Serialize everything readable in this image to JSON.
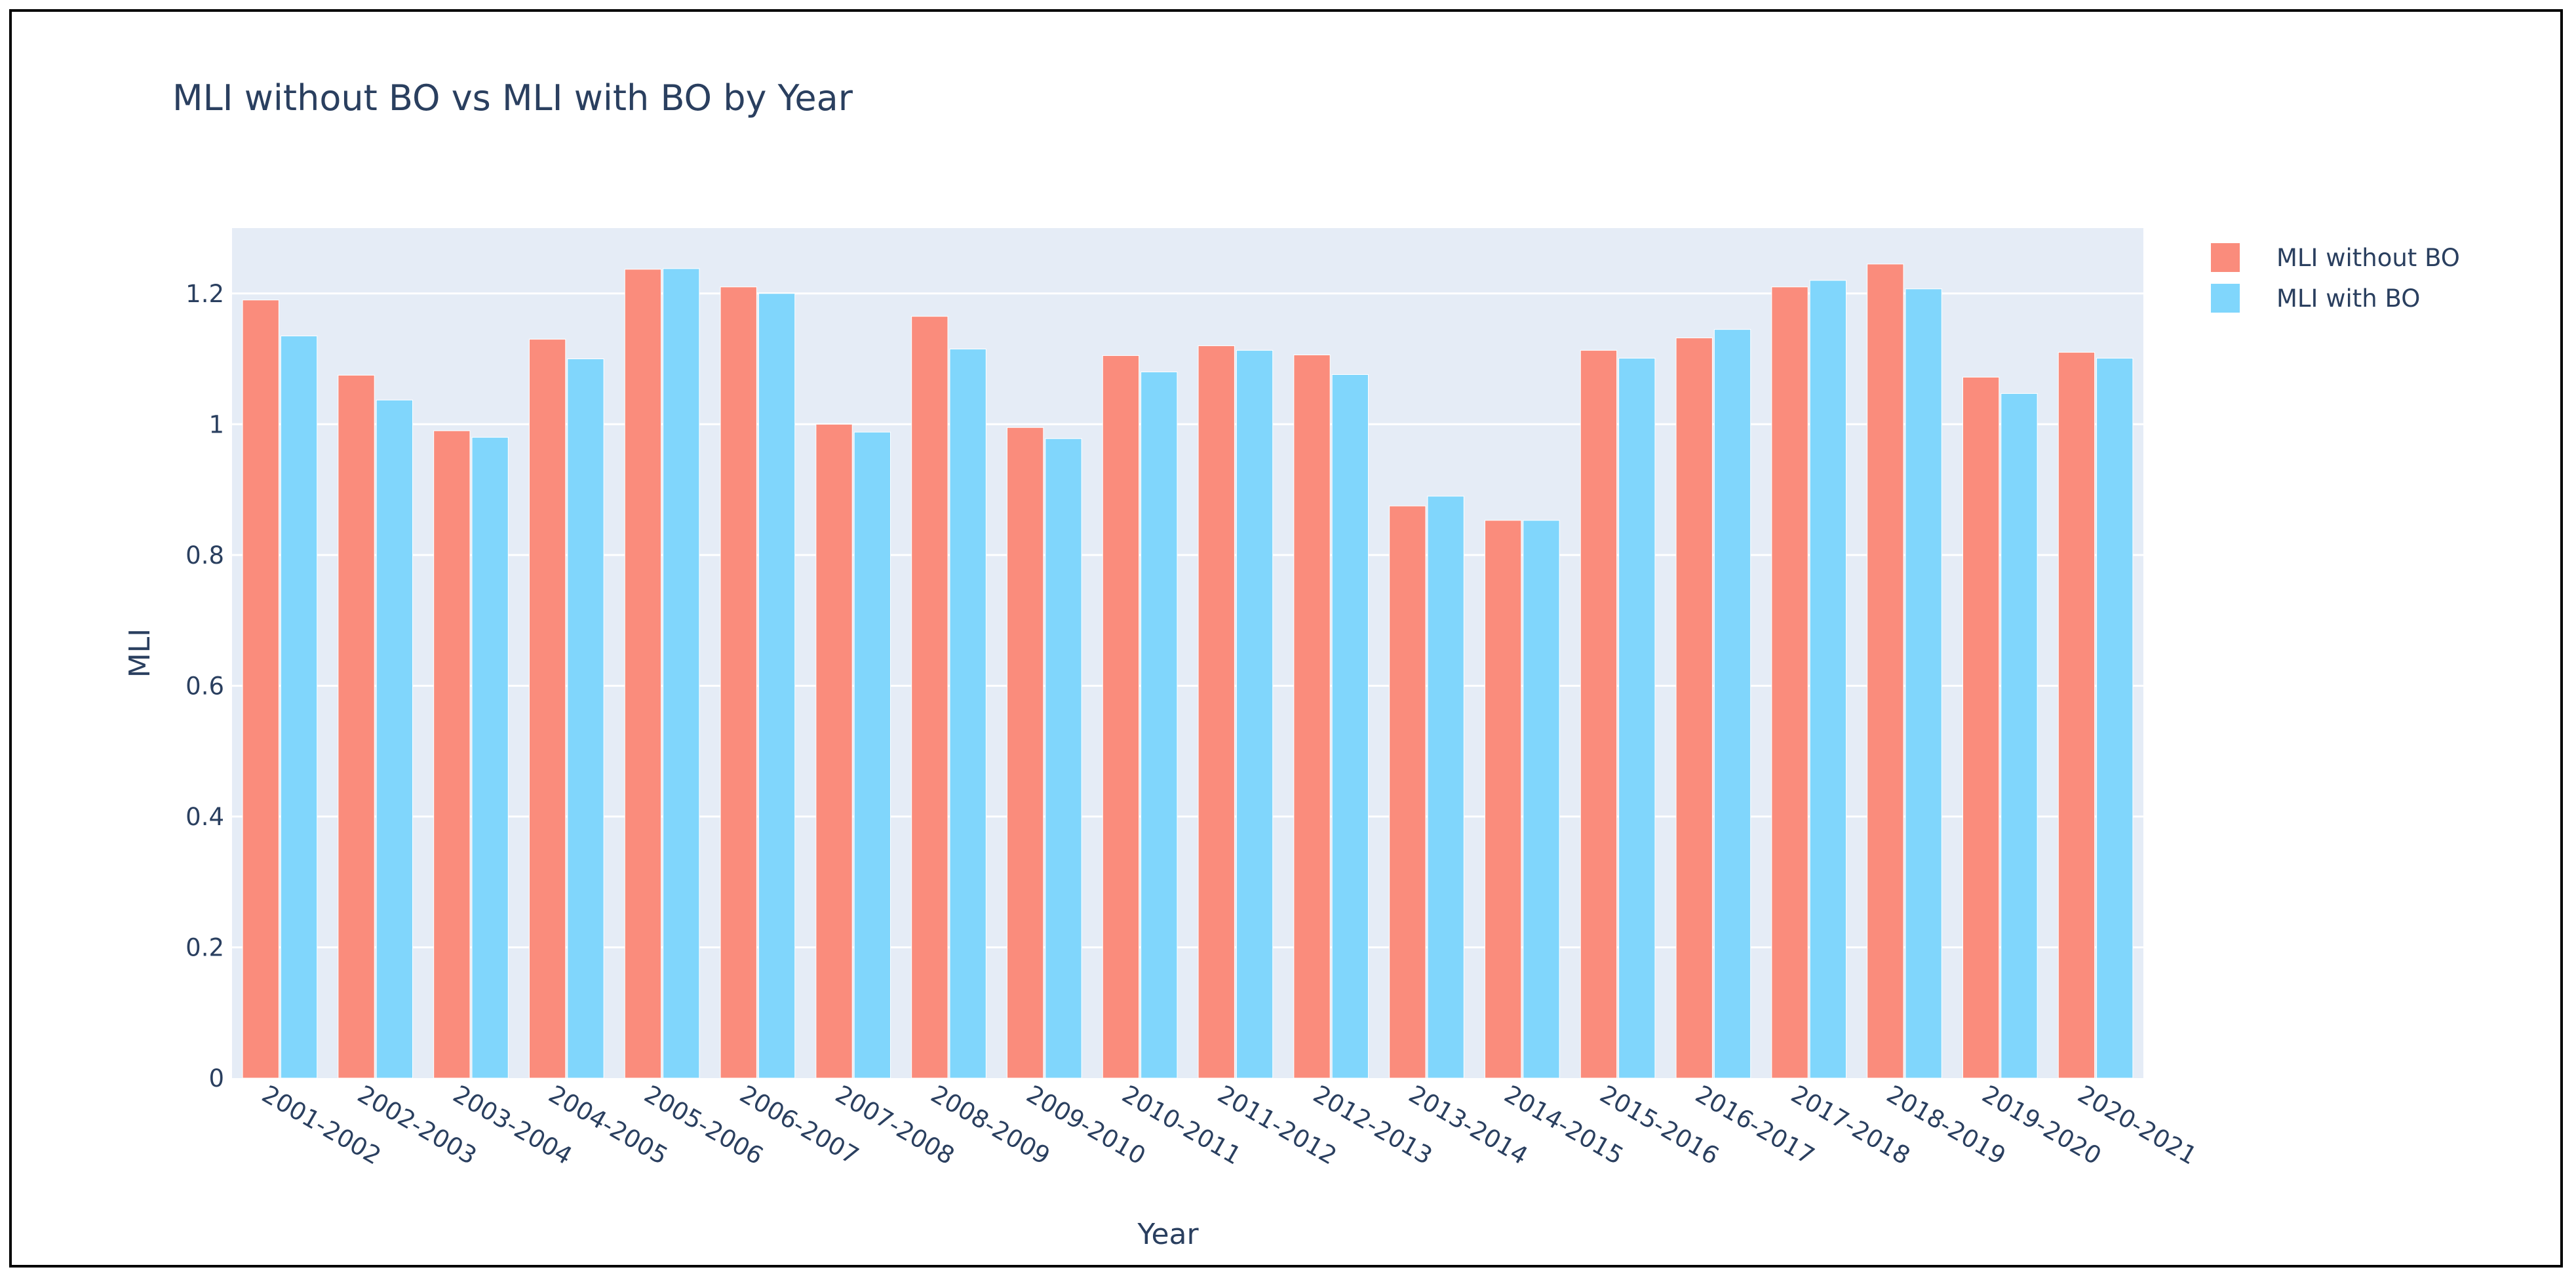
{
  "chart_data": {
    "type": "bar",
    "title": "MLI without BO vs MLI with BO by Year",
    "xlabel": "Year",
    "ylabel": "MLI",
    "categories": [
      "2001-2002",
      "2002-2003",
      "2003-2004",
      "2004-2005",
      "2005-2006",
      "2006-2007",
      "2007-2008",
      "2008-2009",
      "2009-2010",
      "2010-2011",
      "2011-2012",
      "2012-2013",
      "2013-2014",
      "2014-2015",
      "2015-2016",
      "2016-2017",
      "2017-2018",
      "2018-2019",
      "2019-2020",
      "2020-2021"
    ],
    "series": [
      {
        "name": "MLI without BO",
        "color": "#fa8c7c",
        "values": [
          1.19,
          1.075,
          0.99,
          1.13,
          1.237,
          1.21,
          1.0,
          1.165,
          0.995,
          1.105,
          1.12,
          1.106,
          0.875,
          0.853,
          1.113,
          1.132,
          1.21,
          1.245,
          1.072,
          1.11
        ]
      },
      {
        "name": "MLI with BO",
        "color": "#80d6fc",
        "values": [
          1.135,
          1.037,
          0.98,
          1.1,
          1.238,
          1.2,
          0.988,
          1.115,
          0.978,
          1.08,
          1.113,
          1.076,
          0.89,
          0.853,
          1.101,
          1.145,
          1.22,
          1.207,
          1.047,
          1.101
        ]
      }
    ],
    "ylim": [
      0,
      1.3
    ],
    "yticks": [
      0,
      0.2,
      0.4,
      0.6,
      0.8,
      1,
      1.2
    ],
    "ytick_labels": [
      "0",
      "0.2",
      "0.4",
      "0.6",
      "0.8",
      "1",
      "1.2"
    ],
    "grid": true,
    "legend_position": "top-right",
    "plot_background": "#e5ecf6",
    "text_color": "#2a3f5f"
  }
}
